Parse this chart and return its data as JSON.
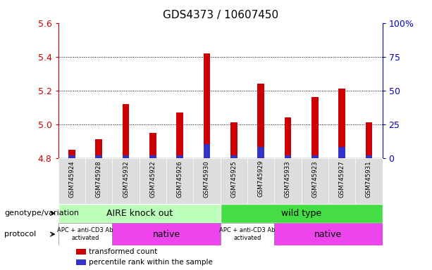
{
  "title": "GDS4373 / 10607450",
  "samples": [
    "GSM745924",
    "GSM745928",
    "GSM745932",
    "GSM745922",
    "GSM745926",
    "GSM745930",
    "GSM745925",
    "GSM745929",
    "GSM745933",
    "GSM745923",
    "GSM745927",
    "GSM745931"
  ],
  "red_values": [
    4.85,
    4.91,
    5.12,
    4.95,
    5.07,
    5.42,
    5.01,
    5.24,
    5.04,
    5.16,
    5.21,
    5.01
  ],
  "blue_values_pct": [
    2,
    2,
    2,
    2,
    2,
    10,
    2,
    8,
    2,
    2,
    8,
    2
  ],
  "ymin": 4.8,
  "ymax": 5.6,
  "yticks": [
    4.8,
    5.0,
    5.2,
    5.4,
    5.6
  ],
  "right_yticks_pct": [
    0,
    25,
    50,
    75,
    100
  ],
  "right_ytick_labels": [
    "0",
    "25",
    "50",
    "75",
    "100%"
  ],
  "bar_width": 0.25,
  "red_color": "#cc0000",
  "blue_color": "#3333cc",
  "left_tick_color": "#cc0000",
  "right_tick_color": "#0000cc",
  "group1_label": "AIRE knock out",
  "group2_label": "wild type",
  "group1_color": "#bbffbb",
  "group2_color": "#44dd44",
  "proto1a_label": "APC + anti-CD3 Ab\nactivated",
  "proto1b_label": "native",
  "proto2a_label": "APC + anti-CD3 Ab\nactivated",
  "proto2b_label": "native",
  "proto_apc_color": "#ffffff",
  "proto_native_color": "#ee44ee",
  "legend_red": "transformed count",
  "legend_blue": "percentile rank within the sample",
  "genotype_label": "genotype/variation",
  "protocol_label": "protocol",
  "background_color": "#ffffff"
}
